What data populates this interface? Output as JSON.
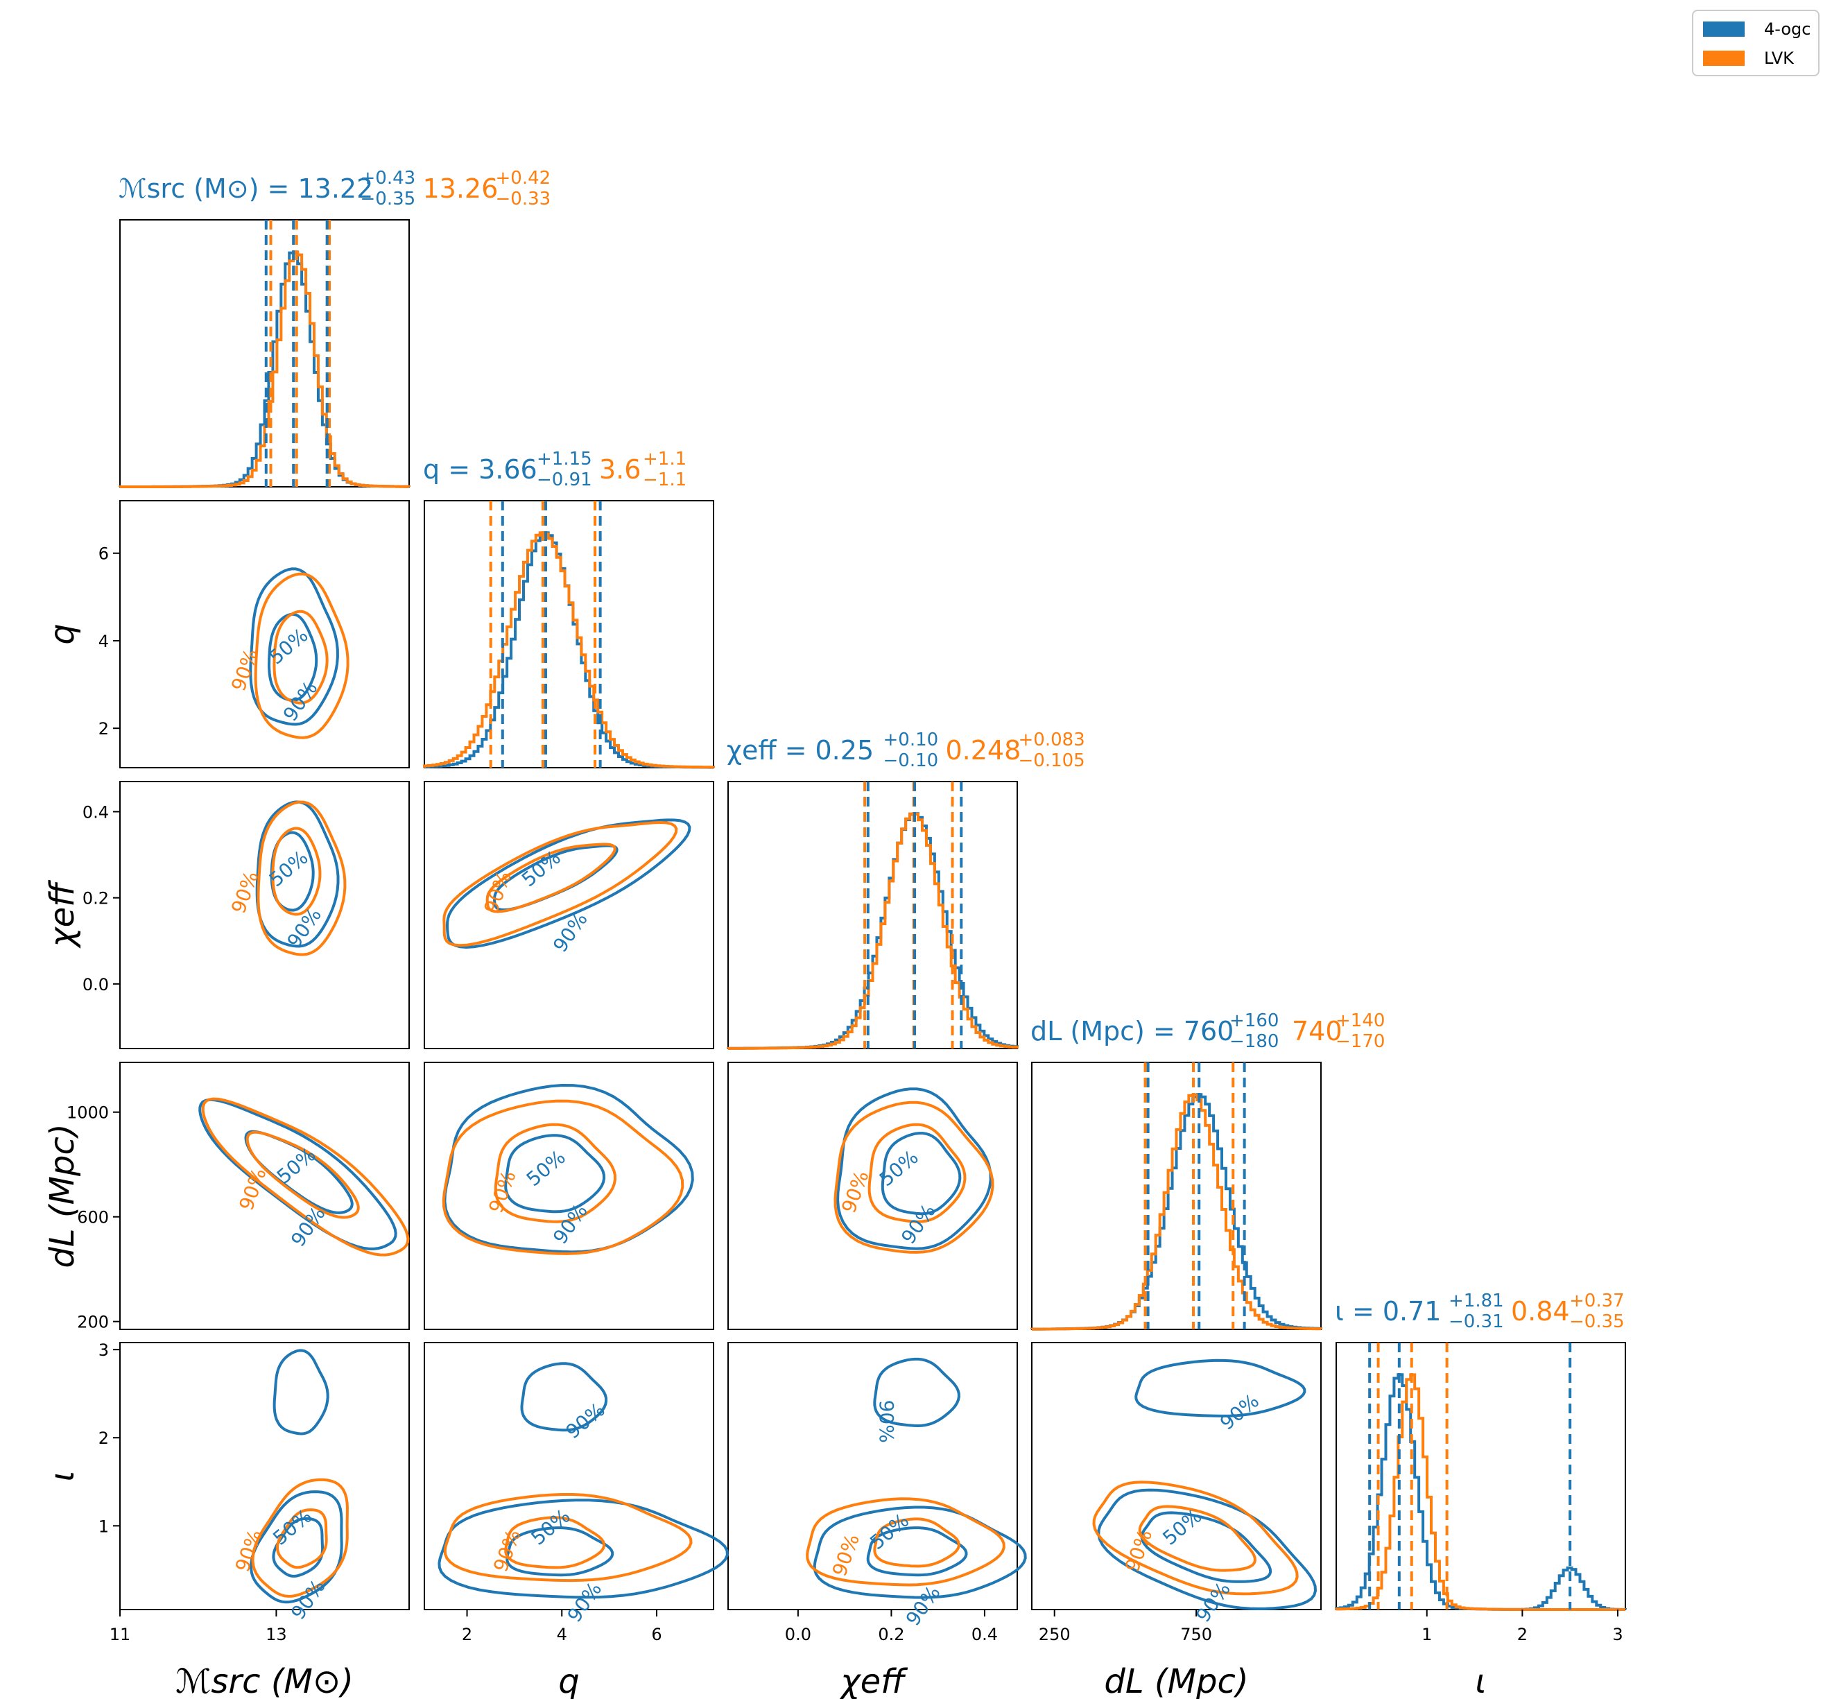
{
  "legend": {
    "entries": [
      {
        "label": "4-ogc",
        "color": "#1f77b4"
      },
      {
        "label": "LVK",
        "color": "#ff7f0e"
      }
    ],
    "placement": "top-right"
  },
  "colors": {
    "ogc": "#1f77b4",
    "lvk": "#ff7f0e"
  },
  "chart_data": {
    "type": "corner",
    "parameters": [
      {
        "name": "chirp_mass_src",
        "axis_label": "ℳsrc (M⊙)",
        "title_prefix": "ℳsrc (M⊙) = ",
        "ogc": {
          "median": "13.22",
          "plus": "+0.43",
          "minus": "−0.35"
        },
        "lvk": {
          "median": "13.26",
          "plus": "+0.42",
          "minus": "−0.33"
        },
        "range": [
          11,
          14.7
        ],
        "ticks": [
          11,
          13
        ],
        "tick_labels": [
          "11",
          "13"
        ]
      },
      {
        "name": "q",
        "axis_label": "q",
        "title_prefix": "q = ",
        "ogc": {
          "median": "3.66",
          "plus": "+1.15",
          "minus": "−0.91"
        },
        "lvk": {
          "median": "3.6",
          "plus": "+1.1",
          "minus": "−1.1"
        },
        "range": [
          1.1,
          7.2
        ],
        "ticks": [
          2,
          4,
          6
        ],
        "tick_labels": [
          "2",
          "4",
          "6"
        ]
      },
      {
        "name": "chi_eff",
        "axis_label": "χeff",
        "title_prefix": "χeff = ",
        "ogc": {
          "median": "0.25",
          "plus": "+0.10",
          "minus": "−0.10"
        },
        "lvk": {
          "median": "0.248",
          "plus": "+0.083",
          "minus": "−0.105"
        },
        "range": [
          -0.15,
          0.47
        ],
        "ticks": [
          0.0,
          0.2,
          0.4
        ],
        "tick_labels": [
          "0.0",
          "0.2",
          "0.4"
        ]
      },
      {
        "name": "d_L",
        "axis_label": "dL (Mpc)",
        "title_prefix": "dL (Mpc) = ",
        "ogc": {
          "median": "760",
          "plus": "+160",
          "minus": "−180"
        },
        "lvk": {
          "median": "740",
          "plus": "+140",
          "minus": "−170"
        },
        "range": [
          170,
          1190
        ],
        "ticks": [
          250,
          750
        ],
        "tick_labels": [
          "250",
          "750"
        ],
        "y_ticks": [
          200,
          600,
          1000
        ],
        "y_tick_labels": [
          "200",
          "600",
          "1000"
        ]
      },
      {
        "name": "iota",
        "axis_label": "ι",
        "title_prefix": "ι = ",
        "ogc": {
          "median": "0.71",
          "plus": "+1.81",
          "minus": "−0.31"
        },
        "lvk": {
          "median": "0.84",
          "plus": "+0.37",
          "minus": "−0.35"
        },
        "range": [
          0.05,
          3.08
        ],
        "ticks": [
          1,
          2,
          3
        ],
        "tick_labels": [
          "1",
          "2",
          "3"
        ]
      }
    ],
    "y_tick_overrides": {
      "q": {
        "ticks": [
          2,
          4,
          6
        ],
        "labels": [
          "2",
          "4",
          "6"
        ]
      },
      "chi_eff": {
        "ticks": [
          0.0,
          0.2,
          0.4
        ],
        "labels": [
          "0.0",
          "0.2",
          "0.4"
        ]
      },
      "d_L": {
        "ticks": [
          200,
          600,
          1000
        ],
        "labels": [
          "200",
          "600",
          "1000"
        ]
      },
      "iota": {
        "ticks": [
          1,
          2,
          3
        ],
        "labels": [
          "1",
          "2",
          "3"
        ]
      }
    },
    "contour_labels": [
      "50%",
      "90%"
    ],
    "marginal_1d": [
      {
        "param": "chirp_mass_src",
        "ogc": {
          "center": 13.22,
          "lo": 12.87,
          "hi": 13.65,
          "sigma": 0.24
        },
        "lvk": {
          "center": 13.26,
          "lo": 12.93,
          "hi": 13.68,
          "sigma": 0.23
        }
      },
      {
        "param": "q",
        "ogc": {
          "center": 3.66,
          "lo": 2.75,
          "hi": 4.81,
          "sigma": 0.62
        },
        "lvk": {
          "center": 3.6,
          "lo": 2.5,
          "hi": 4.7,
          "sigma": 0.7
        }
      },
      {
        "param": "chi_eff",
        "ogc": {
          "center": 0.25,
          "lo": 0.15,
          "hi": 0.35,
          "sigma": 0.062
        },
        "lvk": {
          "center": 0.248,
          "lo": 0.143,
          "hi": 0.331,
          "sigma": 0.058
        }
      },
      {
        "param": "d_L",
        "ogc": {
          "center": 760,
          "lo": 580,
          "hi": 920,
          "sigma": 100
        },
        "lvk": {
          "center": 740,
          "lo": 570,
          "hi": 880,
          "sigma": 92
        }
      },
      {
        "param": "iota",
        "ogc": {
          "center": 0.71,
          "lo": 0.4,
          "hi": 2.52,
          "sigma": 0.17,
          "second_mode": 2.5,
          "second_weight": 0.18
        },
        "lvk": {
          "center": 0.84,
          "lo": 0.49,
          "hi": 1.21,
          "sigma": 0.15
        }
      }
    ]
  }
}
